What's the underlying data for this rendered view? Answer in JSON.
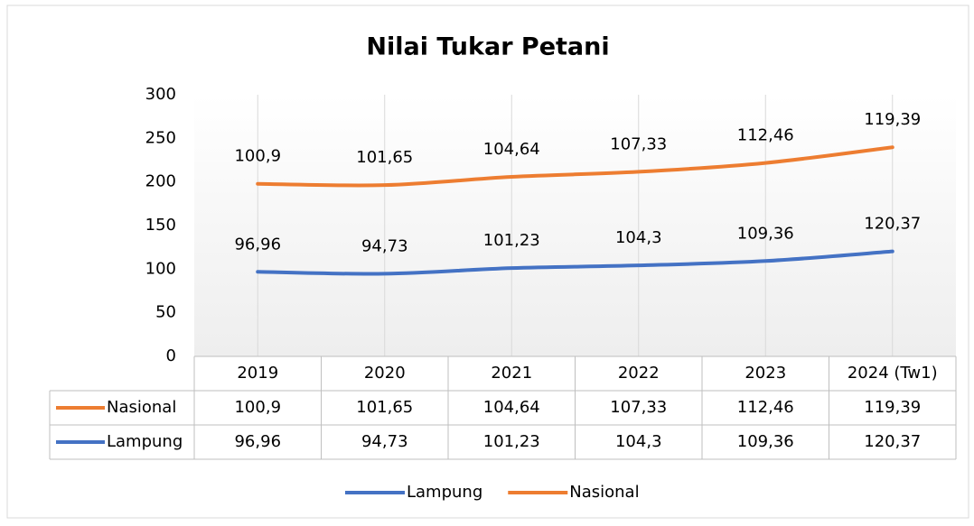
{
  "chart_data": {
    "type": "line",
    "stacked": true,
    "title": "Nilai Tukar Petani",
    "categories": [
      "2019",
      "2020",
      "2021",
      "2022",
      "2023",
      "2024 (Tw1)"
    ],
    "series": [
      {
        "name": "Lampung",
        "color": "#4472c4",
        "values": [
          96.96,
          94.73,
          101.23,
          104.3,
          109.36,
          120.37
        ],
        "value_labels": [
          "96,96",
          "94,73",
          "101,23",
          "104,3",
          "109,36",
          "120,37"
        ]
      },
      {
        "name": "Nasional",
        "color": "#ed7d31",
        "values": [
          100.9,
          101.65,
          104.64,
          107.33,
          112.46,
          119.39
        ],
        "value_labels": [
          "100,9",
          "101,65",
          "104,64",
          "107,33",
          "112,46",
          "119,39"
        ]
      }
    ],
    "ylim": [
      0,
      300
    ],
    "yticks": [
      0,
      50,
      100,
      150,
      200,
      250,
      300
    ],
    "data_table": true,
    "legend": "bottom"
  }
}
